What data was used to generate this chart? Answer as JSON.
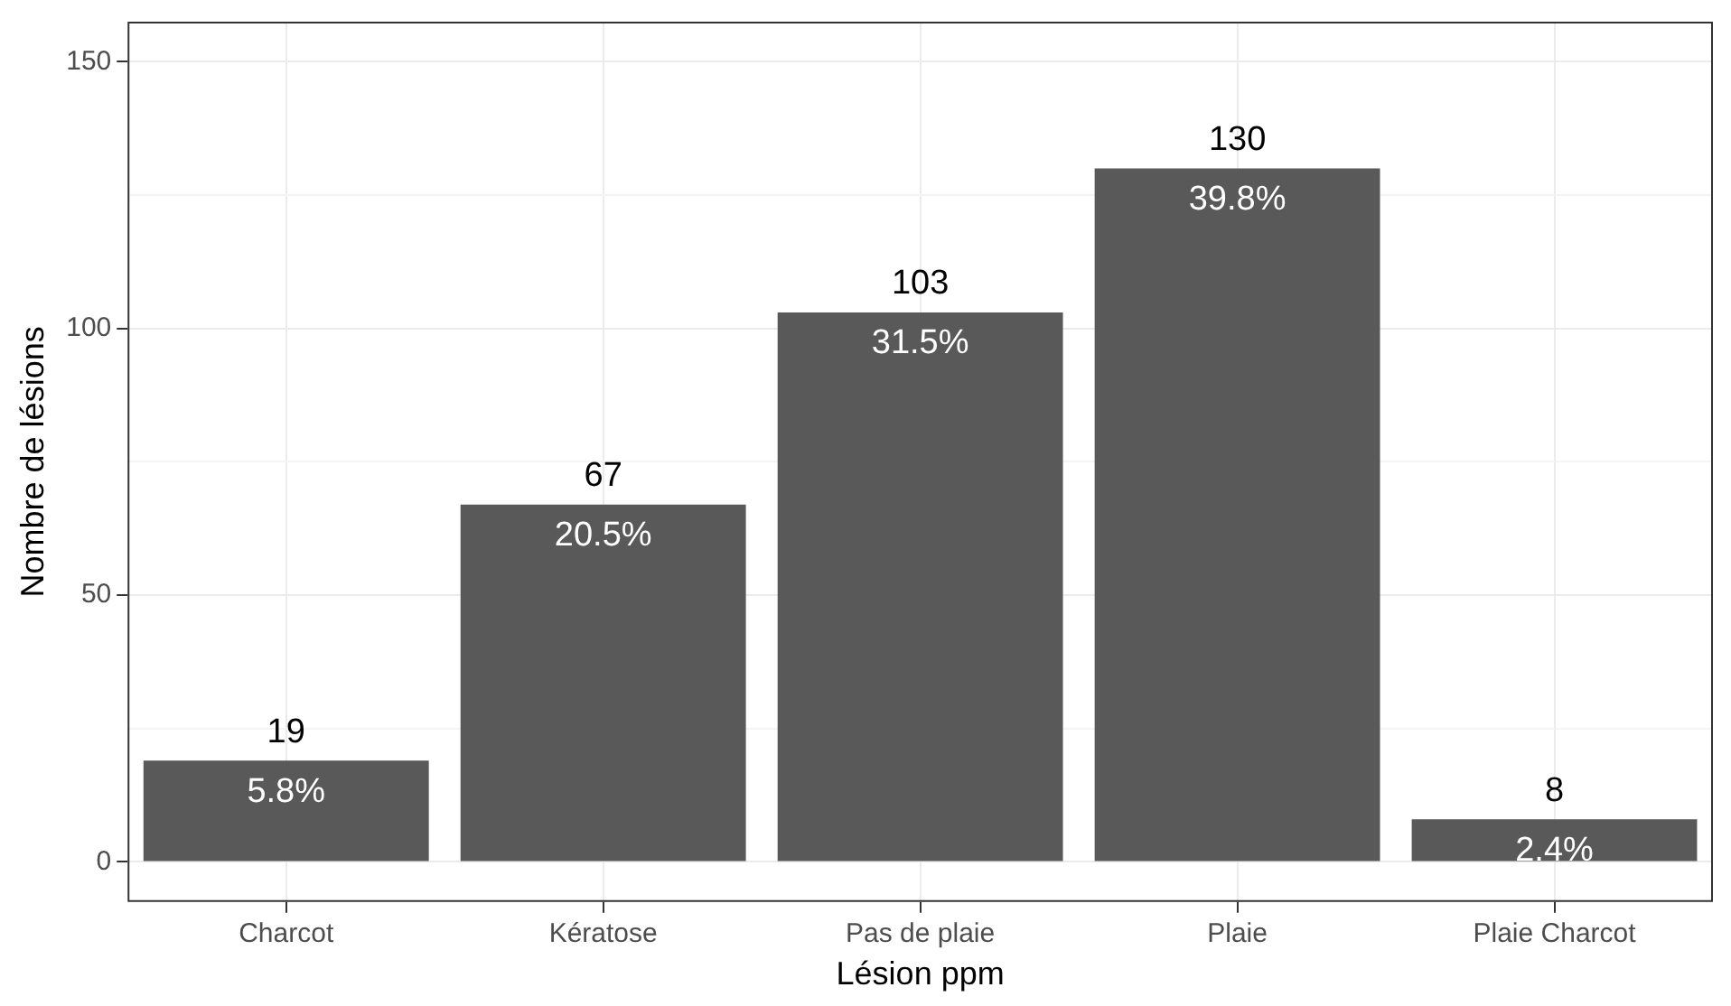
{
  "chart_data": {
    "type": "bar",
    "xlabel": "Lésion ppm",
    "ylabel": "Nombre de lésions",
    "categories": [
      "Charcot",
      "Kératose",
      "Pas de plaie",
      "Plaie",
      "Plaie Charcot"
    ],
    "values": [
      19,
      67,
      103,
      130,
      8
    ],
    "color": "#595959",
    "ylim": [
      -7.5,
      157.5
    ],
    "yticks": [
      0,
      {
        "value": 25,
        "label": null
      },
      50,
      {
        "value": 75,
        "label": null
      },
      100,
      {
        "value": 125,
        "label": null
      },
      150
    ],
    "grid": true,
    "legend": false,
    "data_labels": true,
    "annotations": [
      {
        "text": "5.8%",
        "x": "Charcot",
        "y": 19
      },
      {
        "text": "20.5%",
        "x": "Kératose",
        "y": 67
      },
      {
        "text": "31.5%",
        "x": "Pas de plaie",
        "y": 103
      },
      {
        "text": "39.8%",
        "x": "Plaie",
        "y": 130
      },
      {
        "text": "2.4%",
        "x": "Plaie Charcot",
        "y": 8
      }
    ]
  }
}
